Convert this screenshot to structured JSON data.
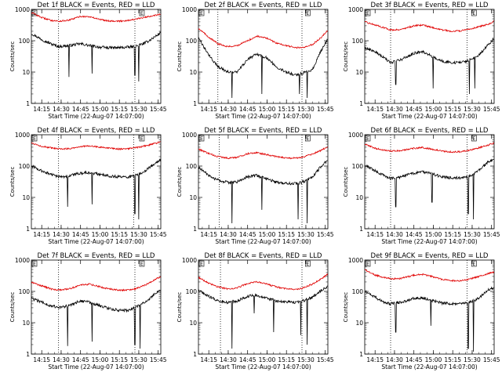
{
  "figure": {
    "colors": {
      "events": "#000000",
      "lld": "#e00000",
      "axes": "#000000",
      "background": "#ffffff"
    },
    "flag_label": "E",
    "time_ticks": [
      "14:15",
      "14:30",
      "14:45",
      "15:00",
      "15:15",
      "15:30",
      "15:45"
    ],
    "y_ticks": [
      "1",
      "10",
      "100",
      "1000"
    ]
  },
  "chart_data": [
    {
      "type": "line",
      "title": "Det 1f BLACK = Events, RED = LLD",
      "xlabel": "Start Time (22-Aug-07 14:07:00)",
      "ylabel": "Counts/sec",
      "y_scale": "log",
      "ylim": [
        1,
        1000
      ],
      "xlim": [
        "14:07",
        "15:47"
      ],
      "grid": false,
      "markers_dotted": [
        "14:28",
        "15:27"
      ],
      "flags": [
        "14:07",
        "15:30"
      ],
      "x": [
        "14:07",
        "14:15",
        "14:22",
        "14:28",
        "14:36",
        "14:45",
        "14:52",
        "15:00",
        "15:07",
        "15:15",
        "15:22",
        "15:27",
        "15:35",
        "15:42",
        "15:47"
      ],
      "series": [
        {
          "name": "Events",
          "color": "#000000",
          "values": [
            170,
            110,
            80,
            65,
            70,
            80,
            70,
            62,
            60,
            60,
            62,
            65,
            85,
            130,
            180
          ],
          "dips": [
            {
              "t": "14:36",
              "v": 7
            },
            {
              "t": "14:54",
              "v": 9
            },
            {
              "t": "15:27",
              "v": 8
            },
            {
              "t": "15:30",
              "v": 5
            }
          ]
        },
        {
          "name": "LLD",
          "color": "#e00000",
          "values": [
            800,
            550,
            450,
            420,
            450,
            600,
            580,
            480,
            430,
            420,
            450,
            480,
            560,
            650,
            700
          ]
        }
      ]
    },
    {
      "type": "line",
      "title": "Det 2f BLACK = Events, RED = LLD",
      "xlabel": "Start Time (22-Aug-07 14:07:00)",
      "ylabel": "Counts/sec",
      "y_scale": "log",
      "ylim": [
        1,
        1000
      ],
      "xlim": [
        "14:07",
        "15:47"
      ],
      "grid": false,
      "markers_dotted": [
        "14:22",
        "15:27"
      ],
      "flags": [
        "14:07",
        "15:29"
      ],
      "x": [
        "14:07",
        "14:15",
        "14:22",
        "14:30",
        "14:37",
        "14:45",
        "14:52",
        "15:00",
        "15:07",
        "15:15",
        "15:22",
        "15:27",
        "15:35",
        "15:42",
        "15:47"
      ],
      "series": [
        {
          "name": "Events",
          "color": "#000000",
          "values": [
            120,
            35,
            15,
            10,
            10,
            25,
            38,
            28,
            15,
            10,
            8,
            9,
            12,
            50,
            120
          ],
          "dips": [
            {
              "t": "14:33",
              "v": 1.5
            },
            {
              "t": "14:56",
              "v": 2
            },
            {
              "t": "15:25",
              "v": 2
            },
            {
              "t": "15:31",
              "v": 1.5
            }
          ]
        },
        {
          "name": "LLD",
          "color": "#e00000",
          "values": [
            250,
            130,
            80,
            65,
            70,
            100,
            140,
            120,
            85,
            70,
            60,
            60,
            75,
            130,
            220
          ]
        }
      ]
    },
    {
      "type": "line",
      "title": "Det 3f BLACK = Events, RED = LLD",
      "xlabel": "Start Time (22-Aug-07 14:07:00)",
      "ylabel": "Counts/sec",
      "y_scale": "log",
      "ylim": [
        1,
        1000
      ],
      "xlim": [
        "14:07",
        "15:47"
      ],
      "grid": false,
      "markers_dotted": [
        "14:27",
        "15:26"
      ],
      "flags": [
        "14:07",
        "15:29"
      ],
      "x": [
        "14:07",
        "14:15",
        "14:22",
        "14:27",
        "14:35",
        "14:45",
        "14:52",
        "15:00",
        "15:07",
        "15:15",
        "15:22",
        "15:27",
        "15:35",
        "15:42",
        "15:47"
      ],
      "series": [
        {
          "name": "Events",
          "color": "#000000",
          "values": [
            60,
            45,
            28,
            20,
            25,
            40,
            45,
            30,
            22,
            20,
            20,
            24,
            35,
            70,
            120
          ],
          "dips": [
            {
              "t": "14:31",
              "v": 4
            },
            {
              "t": "15:00",
              "v": 3
            },
            {
              "t": "15:28",
              "v": 2
            },
            {
              "t": "15:32",
              "v": 3
            }
          ]
        },
        {
          "name": "LLD",
          "color": "#e00000",
          "values": [
            400,
            320,
            260,
            220,
            230,
            300,
            320,
            260,
            220,
            200,
            210,
            230,
            280,
            330,
            420
          ]
        }
      ]
    },
    {
      "type": "line",
      "title": "Det 4f BLACK = Events, RED = LLD",
      "xlabel": "Start Time (22-Aug-07 14:07:00)",
      "ylabel": "Counts/sec",
      "y_scale": "log",
      "ylim": [
        1,
        1000
      ],
      "xlim": [
        "14:07",
        "15:47"
      ],
      "grid": false,
      "markers_dotted": [
        "14:28",
        "15:26"
      ],
      "flags": [
        "14:07",
        "15:30"
      ],
      "x": [
        "14:07",
        "14:15",
        "14:22",
        "14:28",
        "14:36",
        "14:45",
        "14:52",
        "15:00",
        "15:07",
        "15:15",
        "15:22",
        "15:27",
        "15:35",
        "15:42",
        "15:47"
      ],
      "series": [
        {
          "name": "Events",
          "color": "#000000",
          "values": [
            100,
            70,
            55,
            45,
            48,
            60,
            62,
            55,
            48,
            45,
            45,
            48,
            70,
            120,
            160
          ],
          "dips": [
            {
              "t": "14:35",
              "v": 5
            },
            {
              "t": "14:54",
              "v": 6
            },
            {
              "t": "15:27",
              "v": 3
            },
            {
              "t": "15:30",
              "v": 2
            }
          ]
        },
        {
          "name": "LLD",
          "color": "#e00000",
          "values": [
            550,
            430,
            380,
            350,
            360,
            420,
            440,
            400,
            370,
            350,
            360,
            380,
            440,
            520,
            600
          ]
        }
      ]
    },
    {
      "type": "line",
      "title": "Det 5f BLACK = Events, RED = LLD",
      "xlabel": "Start Time (22-Aug-07 14:07:00)",
      "ylabel": "Counts/sec",
      "y_scale": "log",
      "ylim": [
        1,
        1000
      ],
      "xlim": [
        "14:07",
        "15:47"
      ],
      "grid": false,
      "markers_dotted": [
        "14:23",
        "15:27"
      ],
      "flags": [
        "14:07",
        "15:29"
      ],
      "x": [
        "14:07",
        "14:15",
        "14:22",
        "14:30",
        "14:37",
        "14:45",
        "14:52",
        "15:00",
        "15:07",
        "15:15",
        "15:22",
        "15:27",
        "15:35",
        "15:42",
        "15:47"
      ],
      "series": [
        {
          "name": "Events",
          "color": "#000000",
          "values": [
            90,
            50,
            35,
            30,
            32,
            45,
            50,
            40,
            30,
            28,
            28,
            30,
            45,
            100,
            150
          ],
          "dips": [
            {
              "t": "14:33",
              "v": 1.5
            },
            {
              "t": "14:56",
              "v": 4
            },
            {
              "t": "15:24",
              "v": 2
            },
            {
              "t": "15:31",
              "v": 1.5
            }
          ]
        },
        {
          "name": "LLD",
          "color": "#e00000",
          "values": [
            350,
            250,
            200,
            180,
            190,
            250,
            270,
            230,
            200,
            180,
            180,
            190,
            240,
            320,
            420
          ]
        }
      ]
    },
    {
      "type": "line",
      "title": "Det 6f BLACK = Events, RED = LLD",
      "xlabel": "Start Time (22-Aug-07 14:07:00)",
      "ylabel": "Counts/sec",
      "y_scale": "log",
      "ylim": [
        1,
        1000
      ],
      "xlim": [
        "14:07",
        "15:47"
      ],
      "grid": false,
      "markers_dotted": [
        "14:27",
        "15:26"
      ],
      "flags": [
        "14:07",
        "15:29"
      ],
      "x": [
        "14:07",
        "14:15",
        "14:22",
        "14:27",
        "14:35",
        "14:45",
        "14:52",
        "15:00",
        "15:07",
        "15:15",
        "15:22",
        "15:27",
        "15:35",
        "15:42",
        "15:47"
      ],
      "series": [
        {
          "name": "Events",
          "color": "#000000",
          "values": [
            110,
            70,
            50,
            40,
            45,
            60,
            65,
            55,
            45,
            42,
            42,
            45,
            70,
            130,
            170
          ],
          "dips": [
            {
              "t": "14:31",
              "v": 5
            },
            {
              "t": "14:59",
              "v": 7
            },
            {
              "t": "15:27",
              "v": 3
            },
            {
              "t": "15:31",
              "v": 2
            }
          ]
        },
        {
          "name": "LLD",
          "color": "#e00000",
          "values": [
            500,
            370,
            320,
            300,
            310,
            370,
            390,
            340,
            300,
            280,
            290,
            310,
            380,
            460,
            540
          ]
        }
      ]
    },
    {
      "type": "line",
      "title": "Det 7f BLACK = Events, RED = LLD",
      "xlabel": "Start Time (22-Aug-07 14:07:00)",
      "ylabel": "Counts/sec",
      "y_scale": "log",
      "ylim": [
        1,
        1000
      ],
      "xlim": [
        "14:07",
        "15:47"
      ],
      "grid": false,
      "markers_dotted": [
        "14:28",
        "15:27"
      ],
      "flags": [
        "14:07",
        "15:30"
      ],
      "x": [
        "14:07",
        "14:15",
        "14:22",
        "14:28",
        "14:36",
        "14:45",
        "14:52",
        "15:00",
        "15:07",
        "15:15",
        "15:22",
        "15:27",
        "15:35",
        "15:42",
        "15:47"
      ],
      "series": [
        {
          "name": "Events",
          "color": "#000000",
          "values": [
            60,
            45,
            35,
            30,
            35,
            50,
            45,
            35,
            28,
            25,
            25,
            30,
            45,
            80,
            120
          ],
          "dips": [
            {
              "t": "14:35",
              "v": 1.8
            },
            {
              "t": "14:54",
              "v": 2.5
            },
            {
              "t": "15:27",
              "v": 2
            },
            {
              "t": "15:31",
              "v": 1.5
            }
          ]
        },
        {
          "name": "LLD",
          "color": "#e00000",
          "values": [
            200,
            150,
            120,
            110,
            120,
            160,
            170,
            140,
            120,
            110,
            110,
            120,
            160,
            230,
            300
          ]
        }
      ]
    },
    {
      "type": "line",
      "title": "Det 8f BLACK = Events, RED = LLD",
      "xlabel": "Start Time (22-Aug-07 14:07:00)",
      "ylabel": "Counts/sec",
      "y_scale": "log",
      "ylim": [
        1,
        1000
      ],
      "xlim": [
        "14:07",
        "15:47"
      ],
      "grid": false,
      "markers_dotted": [
        "14:24",
        "15:27"
      ],
      "flags": [
        "14:07",
        "15:29"
      ],
      "x": [
        "14:07",
        "14:15",
        "14:22",
        "14:30",
        "14:37",
        "14:45",
        "14:52",
        "15:00",
        "15:07",
        "15:15",
        "15:22",
        "15:27",
        "15:35",
        "15:42",
        "15:47"
      ],
      "series": [
        {
          "name": "Events",
          "color": "#000000",
          "values": [
            110,
            70,
            50,
            45,
            50,
            70,
            75,
            60,
            50,
            45,
            45,
            48,
            65,
            110,
            140
          ],
          "dips": [
            {
              "t": "14:33",
              "v": 1.5
            },
            {
              "t": "14:50",
              "v": 20
            },
            {
              "t": "15:05",
              "v": 5
            },
            {
              "t": "15:26",
              "v": 4
            },
            {
              "t": "15:31",
              "v": 2
            }
          ]
        },
        {
          "name": "LLD",
          "color": "#e00000",
          "values": [
            280,
            180,
            140,
            120,
            130,
            180,
            200,
            170,
            140,
            120,
            115,
            125,
            170,
            250,
            360
          ]
        }
      ]
    },
    {
      "type": "line",
      "title": "Det 9f BLACK = Events, RED = LLD",
      "xlabel": "Start Time (22-Aug-07 14:07:00)",
      "ylabel": "Counts/sec",
      "y_scale": "log",
      "ylim": [
        1,
        1000
      ],
      "xlim": [
        "14:07",
        "15:47"
      ],
      "grid": false,
      "markers_dotted": [
        "14:27",
        "15:26"
      ],
      "flags": [
        "14:07",
        "15:29"
      ],
      "x": [
        "14:07",
        "14:15",
        "14:22",
        "14:27",
        "14:35",
        "14:45",
        "14:52",
        "15:00",
        "15:07",
        "15:15",
        "15:22",
        "15:27",
        "15:35",
        "15:42",
        "15:47"
      ],
      "series": [
        {
          "name": "Events",
          "color": "#000000",
          "values": [
            100,
            65,
            45,
            40,
            45,
            60,
            62,
            50,
            42,
            40,
            40,
            42,
            60,
            110,
            130
          ],
          "dips": [
            {
              "t": "14:31",
              "v": 5
            },
            {
              "t": "14:58",
              "v": 8
            },
            {
              "t": "15:27",
              "v": 1.5
            },
            {
              "t": "15:31",
              "v": 1.2
            }
          ]
        },
        {
          "name": "LLD",
          "color": "#e00000",
          "values": [
            500,
            330,
            280,
            250,
            260,
            330,
            350,
            290,
            240,
            220,
            220,
            240,
            300,
            370,
            420
          ]
        }
      ]
    }
  ]
}
